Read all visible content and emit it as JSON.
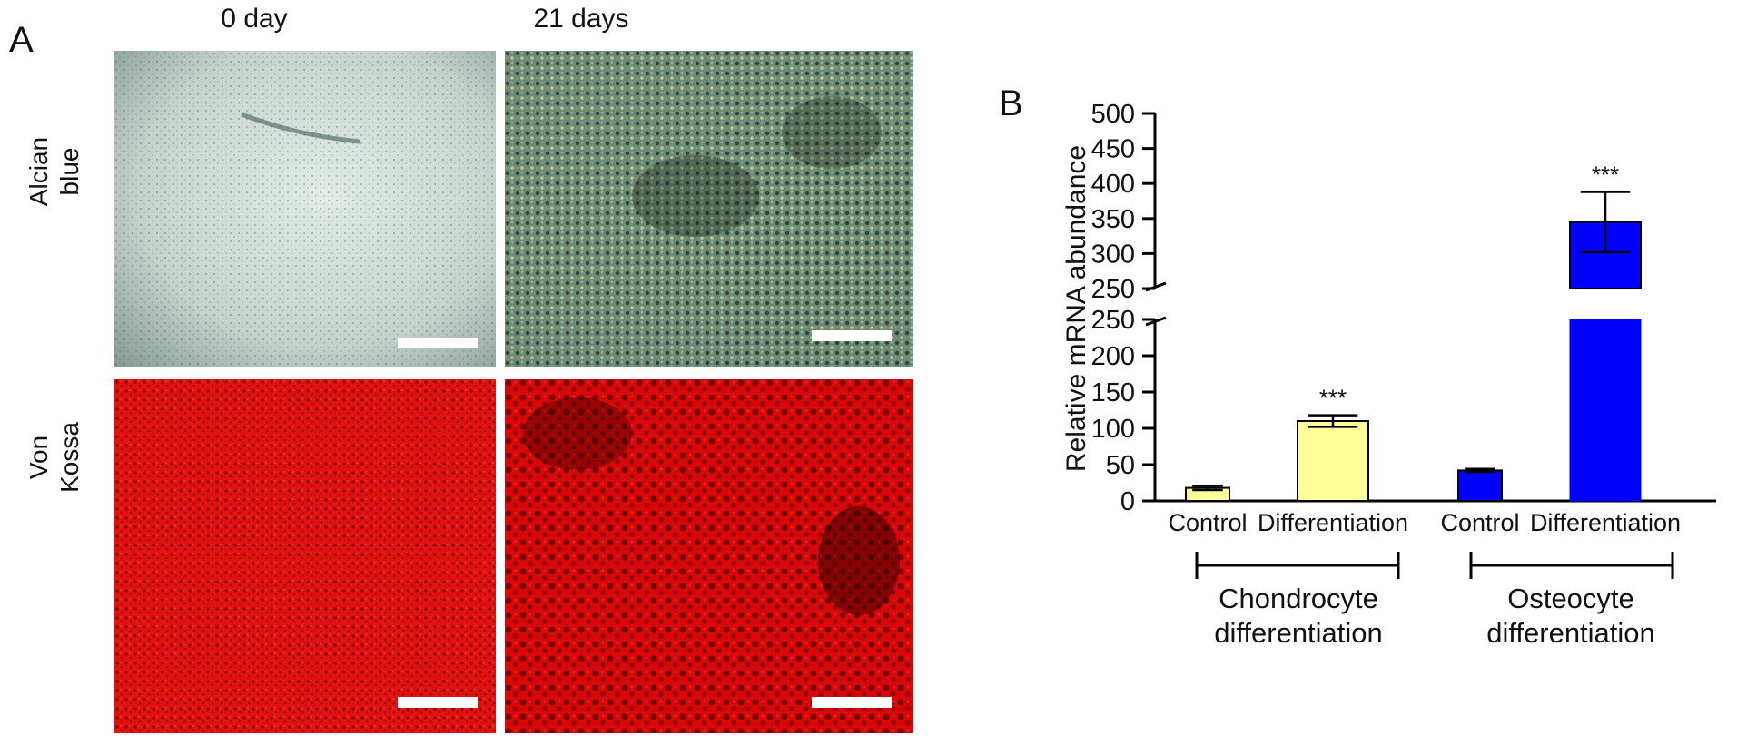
{
  "figure": {
    "panel_a_letter": "A",
    "panel_b_letter": "B",
    "panel_a": {
      "columns": [
        "0 day",
        "21 days"
      ],
      "rows": [
        {
          "label_line1": "Alcian",
          "label_line2": "blue",
          "color_day0": "#c9d6d0",
          "color_day21": "#6f8f7a"
        },
        {
          "label_line1": "Von",
          "label_line2": "Kossa",
          "color_day0": "#e01010",
          "color_day21": "#d40808"
        }
      ]
    }
  },
  "chart_data": {
    "type": "bar",
    "ylabel": "Relative mRNA abundance",
    "y_axis_broken": true,
    "y_lower_range": [
      0,
      250
    ],
    "y_upper_range": [
      250,
      500
    ],
    "y_lower_ticks": [
      "0",
      "50",
      "100",
      "150",
      "200",
      "250"
    ],
    "y_upper_ticks": [
      "250",
      "300",
      "350",
      "400",
      "450",
      "500"
    ],
    "categories": [
      "Control",
      "Differentiation",
      "Control",
      "Differentiation"
    ],
    "groups": [
      {
        "name_line1": "Chondrocyte",
        "name_line2": "differentiation",
        "color": "#ffff99"
      },
      {
        "name_line1": "Osteocyte",
        "name_line2": "differentiation",
        "color": "#0000ff"
      }
    ],
    "bars": [
      {
        "group": 0,
        "category": "Control",
        "value": 18,
        "error": 3,
        "significance": ""
      },
      {
        "group": 0,
        "category": "Differentiation",
        "value": 110,
        "error": 8,
        "significance": "***"
      },
      {
        "group": 1,
        "category": "Control",
        "value": 42,
        "error": 2,
        "significance": ""
      },
      {
        "group": 1,
        "category": "Differentiation",
        "value": 345,
        "error": 43,
        "significance": "***"
      }
    ]
  }
}
